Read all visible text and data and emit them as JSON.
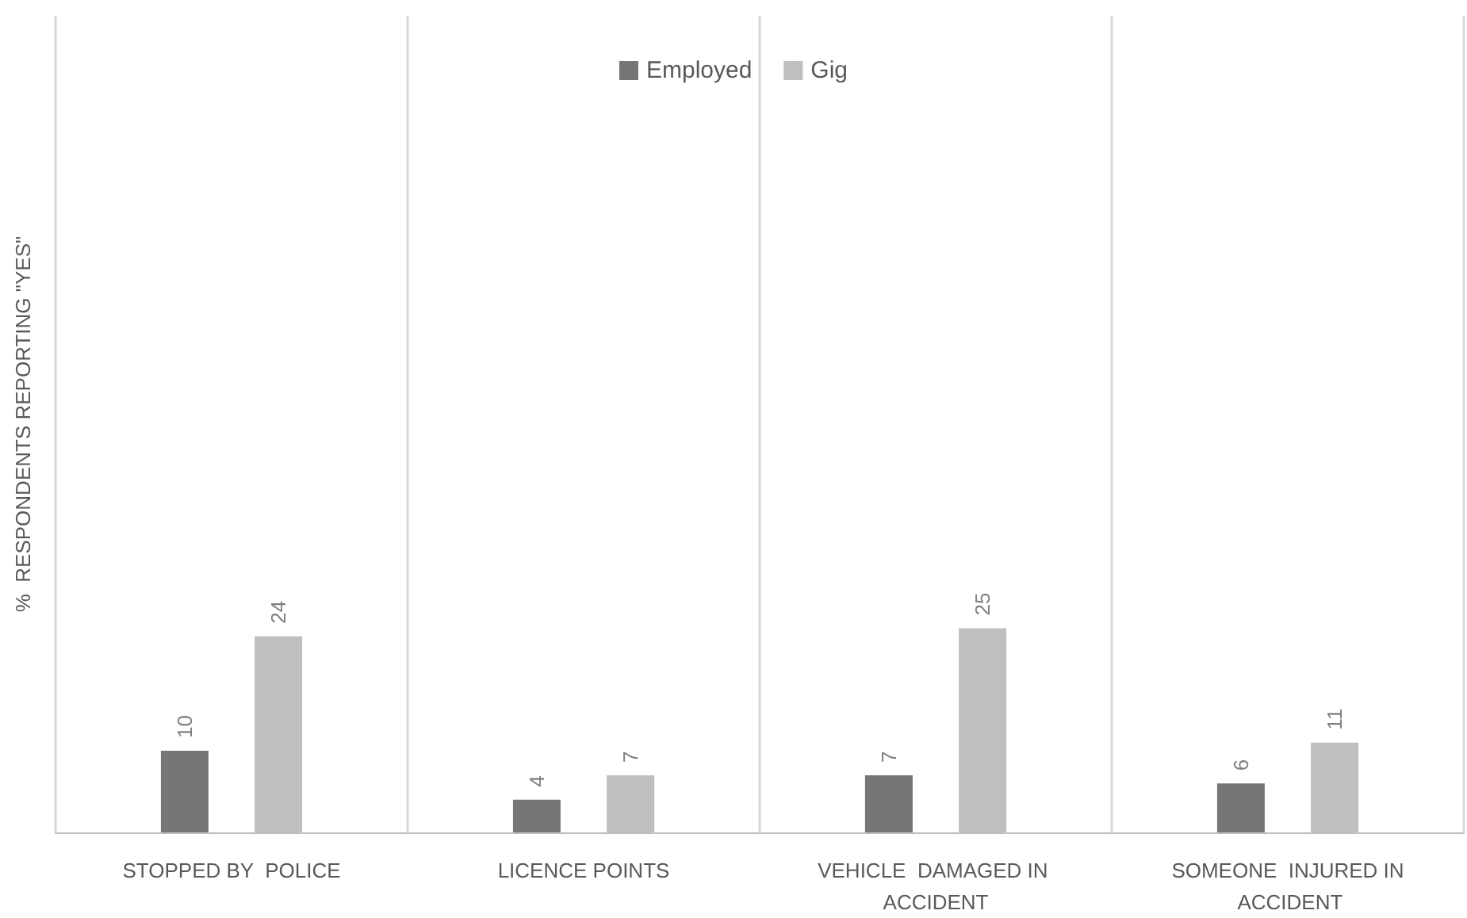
{
  "chart_data": {
    "type": "bar",
    "ylabel": "%  RESPONDENTS REPORTING \"YES\"",
    "categories": [
      "STOPPED BY  POLICE",
      "LICENCE POINTS",
      "VEHICLE  DAMAGED IN ACCIDENT",
      "SOMEONE  INJURED IN ACCIDENT"
    ],
    "series": [
      {
        "name": "Employed",
        "color": "#767676",
        "values": [
          10,
          4,
          7,
          6
        ]
      },
      {
        "name": "Gig",
        "color": "#bfbfbf",
        "values": [
          24,
          7,
          25,
          11
        ]
      }
    ],
    "ylim": [
      0,
      100
    ],
    "data_labels": true,
    "grid": "x",
    "legend": "top"
  }
}
